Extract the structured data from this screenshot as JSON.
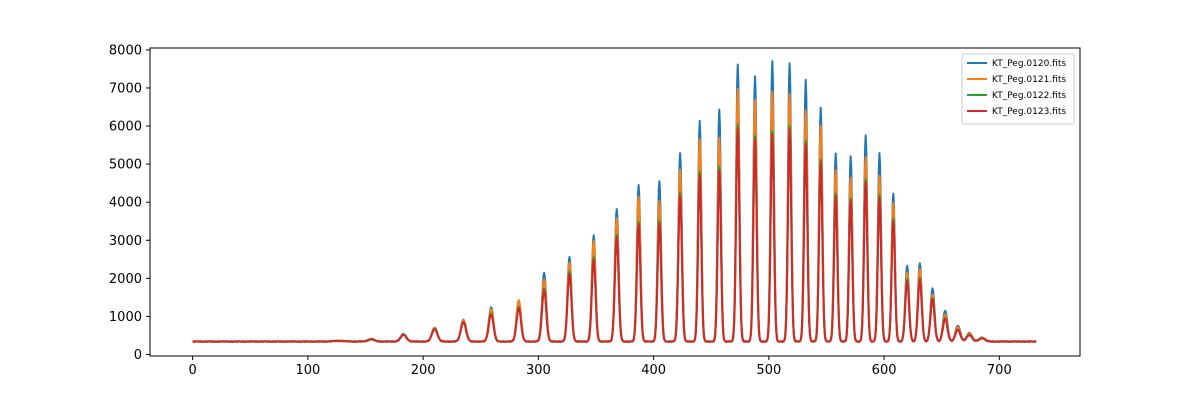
{
  "chart_data": {
    "type": "line",
    "title": "",
    "xlabel": "",
    "ylabel": "",
    "xlim": [
      -37,
      770
    ],
    "ylim": [
      -40,
      8050
    ],
    "xticks": [
      0,
      100,
      200,
      300,
      400,
      500,
      600,
      700
    ],
    "yticks": [
      0,
      1000,
      2000,
      3000,
      4000,
      5000,
      6000,
      7000,
      8000
    ],
    "grid": false,
    "legend_position": "top-right",
    "x_range": [
      0,
      732
    ],
    "baseline": 340,
    "peaks": [
      {
        "x": 127,
        "width": 5.0
      },
      {
        "x": 155,
        "width": 2.8
      },
      {
        "x": 183,
        "width": 2.5
      },
      {
        "x": 210,
        "width": 2.3
      },
      {
        "x": 235,
        "width": 2.2
      },
      {
        "x": 259,
        "width": 2.0
      },
      {
        "x": 283,
        "width": 1.9
      },
      {
        "x": 305,
        "width": 1.8
      },
      {
        "x": 327,
        "width": 1.7
      },
      {
        "x": 348,
        "width": 1.6
      },
      {
        "x": 368,
        "width": 1.6
      },
      {
        "x": 387,
        "width": 1.5
      },
      {
        "x": 405,
        "width": 1.5
      },
      {
        "x": 423,
        "width": 1.5
      },
      {
        "x": 440,
        "width": 1.4
      },
      {
        "x": 457,
        "width": 1.4
      },
      {
        "x": 473,
        "width": 1.4
      },
      {
        "x": 488,
        "width": 1.4
      },
      {
        "x": 503,
        "width": 1.4
      },
      {
        "x": 518,
        "width": 1.4
      },
      {
        "x": 532,
        "width": 1.4
      },
      {
        "x": 545,
        "width": 1.4
      },
      {
        "x": 558,
        "width": 1.4
      },
      {
        "x": 571,
        "width": 1.4
      },
      {
        "x": 584,
        "width": 1.4
      },
      {
        "x": 596,
        "width": 1.4
      },
      {
        "x": 608,
        "width": 1.4
      },
      {
        "x": 620,
        "width": 1.6
      },
      {
        "x": 631,
        "width": 1.6
      },
      {
        "x": 642,
        "width": 1.7
      },
      {
        "x": 653,
        "width": 1.9
      },
      {
        "x": 664,
        "width": 2.1
      },
      {
        "x": 674,
        "width": 2.3
      },
      {
        "x": 685,
        "width": 2.5
      }
    ],
    "series": [
      {
        "name": "KT_Peg.0120.fits",
        "color": "#1f77b4",
        "peak_heights": [
          360,
          410,
          540,
          710,
          920,
          1240,
          1420,
          2150,
          2560,
          3120,
          3820,
          4460,
          4550,
          5290,
          6130,
          6440,
          7620,
          7300,
          7700,
          7650,
          7220,
          6480,
          5280,
          5200,
          5750,
          5280,
          4220,
          2330,
          2400,
          1740,
          1150,
          760,
          570,
          450
        ]
      },
      {
        "name": "KT_Peg.0121.fits",
        "color": "#ff7f0e",
        "peak_heights": [
          360,
          405,
          530,
          700,
          900,
          1180,
          1430,
          1980,
          2420,
          2980,
          3580,
          4150,
          4040,
          4860,
          5650,
          5700,
          6960,
          6680,
          6900,
          6830,
          6400,
          6000,
          4840,
          4650,
          5180,
          4700,
          3980,
          2150,
          2250,
          1580,
          1050,
          720,
          550,
          440
        ]
      },
      {
        "name": "KT_Peg.0122.fits",
        "color": "#2ca02c",
        "peak_heights": [
          358,
          400,
          520,
          680,
          860,
          1080,
          1250,
          1740,
          2180,
          2560,
          3150,
          3480,
          3510,
          4260,
          4800,
          4930,
          6030,
          5730,
          5860,
          6000,
          5600,
          5120,
          4220,
          4100,
          4600,
          4200,
          3580,
          1980,
          2010,
          1490,
          960,
          660,
          520,
          430
        ]
      },
      {
        "name": "KT_Peg.0123.fits",
        "color": "#d62728",
        "peak_heights": [
          355,
          395,
          510,
          670,
          850,
          1060,
          1220,
          1700,
          2120,
          2500,
          3080,
          3420,
          3440,
          4180,
          4720,
          4840,
          5950,
          5650,
          5780,
          5920,
          5520,
          5050,
          4150,
          4050,
          4530,
          4130,
          3500,
          1920,
          1960,
          1450,
          940,
          650,
          510,
          425
        ]
      }
    ]
  }
}
